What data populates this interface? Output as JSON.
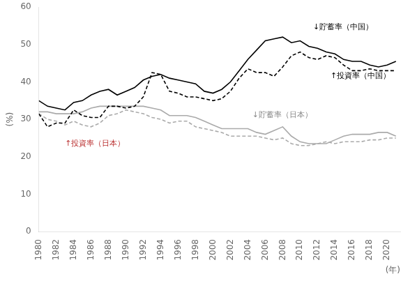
{
  "chart_data": {
    "type": "line",
    "xlabel": "(年)",
    "ylabel": "(%)",
    "x": [
      1980,
      1981,
      1982,
      1983,
      1984,
      1985,
      1986,
      1987,
      1988,
      1989,
      1990,
      1991,
      1992,
      1993,
      1994,
      1995,
      1996,
      1997,
      1998,
      1999,
      2000,
      2001,
      2002,
      2003,
      2004,
      2005,
      2006,
      2007,
      2008,
      2009,
      2010,
      2011,
      2012,
      2013,
      2014,
      2015,
      2016,
      2017,
      2018,
      2019,
      2020,
      2021
    ],
    "series": [
      {
        "color": "#aaaaaa",
        "line_style": "solid",
        "values": [
          32.0,
          32.0,
          31.5,
          31.5,
          31.5,
          32.0,
          33.0,
          33.5,
          33.5,
          33.5,
          33.5,
          33.5,
          33.5,
          33.0,
          32.5,
          31.0,
          31.0,
          31.0,
          30.5,
          29.5,
          28.5,
          27.5,
          27.5,
          27.5,
          27.5,
          26.5,
          26.0,
          27.0,
          28.0,
          25.5,
          24.0,
          23.5,
          23.5,
          23.5,
          24.5,
          25.5,
          26.0,
          26.0,
          26.0,
          26.5,
          26.5,
          25.5
        ]
      },
      {
        "color": "#aaaaaa",
        "line_style": "dashed",
        "values": [
          31.5,
          30.0,
          29.5,
          28.5,
          29.5,
          28.5,
          28.0,
          29.0,
          31.0,
          31.5,
          32.5,
          32.0,
          31.5,
          30.5,
          30.0,
          29.0,
          29.5,
          29.5,
          28.0,
          27.5,
          27.0,
          26.5,
          25.5,
          25.5,
          25.5,
          25.5,
          25.0,
          24.5,
          25.0,
          23.5,
          23.0,
          23.0,
          23.5,
          24.0,
          23.5,
          24.0,
          24.0,
          24.0,
          24.5,
          24.5,
          25.0,
          25.0
        ]
      },
      {
        "color": "#000000",
        "line_style": "solid",
        "values": [
          35.0,
          33.5,
          33.0,
          32.5,
          34.5,
          35.0,
          36.5,
          37.5,
          38.0,
          36.5,
          37.5,
          38.5,
          40.5,
          41.5,
          42.0,
          41.0,
          40.5,
          40.0,
          39.5,
          37.5,
          37.0,
          38.0,
          40.0,
          43.0,
          46.0,
          48.5,
          51.0,
          51.5,
          52.0,
          50.5,
          51.0,
          49.5,
          49.0,
          48.0,
          47.5,
          46.0,
          45.5,
          45.5,
          44.5,
          44.0,
          44.5,
          45.5
        ]
      },
      {
        "color": "#000000",
        "line_style": "dashed",
        "values": [
          31.5,
          28.0,
          29.0,
          29.0,
          32.5,
          31.0,
          30.5,
          30.5,
          33.5,
          33.5,
          33.0,
          33.5,
          36.0,
          42.5,
          42.0,
          37.5,
          37.0,
          36.0,
          36.0,
          35.5,
          35.0,
          35.5,
          37.5,
          41.0,
          43.5,
          42.5,
          42.5,
          41.5,
          44.0,
          47.0,
          48.0,
          46.5,
          46.0,
          47.0,
          46.5,
          44.5,
          43.0,
          43.0,
          43.5,
          43.0,
          43.0,
          43.0
        ]
      }
    ],
    "xlim": [
      1980,
      2021.5
    ],
    "xticks": [
      1980,
      1982,
      1984,
      1986,
      1988,
      1990,
      1992,
      1994,
      1996,
      1998,
      2000,
      2002,
      2004,
      2006,
      2008,
      2010,
      2012,
      2014,
      2016,
      2018,
      2020
    ],
    "ylim": [
      0,
      60
    ],
    "yticks": [
      0,
      10,
      20,
      30,
      40,
      50,
      60
    ],
    "grid": false,
    "annotations": [
      {
        "text": "↓貯蓄率（中国）",
        "x": 2011.5,
        "y": 53.5,
        "color": "#000000"
      },
      {
        "text": "↑投資率（中国）",
        "x": 2013.5,
        "y": 40.5,
        "color": "#000000"
      },
      {
        "text": "↓貯蓄率（日本）",
        "x": 2004.5,
        "y": 30.0,
        "color": "#888888"
      },
      {
        "text": "↑投資率（日本）",
        "x": 1983.0,
        "y": 22.5,
        "color": "#bb3333"
      }
    ]
  }
}
